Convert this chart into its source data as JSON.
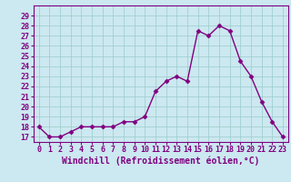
{
  "x": [
    0,
    1,
    2,
    3,
    4,
    5,
    6,
    7,
    8,
    9,
    10,
    11,
    12,
    13,
    14,
    15,
    16,
    17,
    18,
    19,
    20,
    21,
    22,
    23
  ],
  "y": [
    18,
    17,
    17,
    17.5,
    18,
    18,
    18,
    18,
    18.5,
    18.5,
    19,
    21.5,
    22.5,
    23,
    22.5,
    27.5,
    27,
    28,
    27.5,
    24.5,
    23,
    20.5,
    18.5,
    17
  ],
  "line_color": "#800080",
  "marker": "D",
  "marker_size": 2.5,
  "bg_color": "#cce8f0",
  "grid_color": "#99cccc",
  "xlabel": "Windchill (Refroidissement éolien,°C)",
  "xlabel_fontsize": 7,
  "ylim": [
    16.5,
    30
  ],
  "xlim": [
    -0.5,
    23.5
  ],
  "yticks": [
    17,
    18,
    19,
    20,
    21,
    22,
    23,
    24,
    25,
    26,
    27,
    28,
    29
  ],
  "xticks": [
    0,
    1,
    2,
    3,
    4,
    5,
    6,
    7,
    8,
    9,
    10,
    11,
    12,
    13,
    14,
    15,
    16,
    17,
    18,
    19,
    20,
    21,
    22,
    23
  ],
  "tick_fontsize": 6,
  "linewidth": 1.0,
  "spine_color": "#800080"
}
